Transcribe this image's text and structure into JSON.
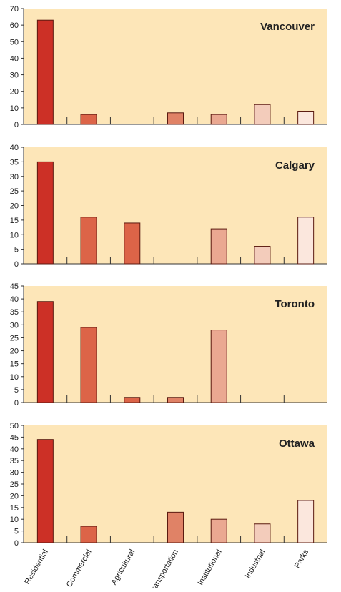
{
  "chart_data": {
    "type": "bar",
    "categories": [
      "Residential",
      "Commercial",
      "Agricultural",
      "Transportation",
      "Institutional",
      "Industrial",
      "Parks"
    ],
    "colors": {
      "plot_background": "#fde6b8",
      "bars": [
        "#cc3026",
        "#dc6448",
        "#dc6448",
        "#e08266",
        "#eaa891",
        "#f3ccbb",
        "#fbe7dd"
      ],
      "bar_outline": "#5a1a10"
    },
    "panels": [
      {
        "title": "Vancouver",
        "ylim": [
          0,
          70
        ],
        "yticks": [
          "0",
          "10",
          "20",
          "30",
          "40",
          "50",
          "60",
          "70"
        ],
        "values": [
          63,
          6,
          0,
          7,
          6,
          12,
          8
        ]
      },
      {
        "title": "Calgary",
        "ylim": [
          0,
          40
        ],
        "yticks": [
          "0",
          "5",
          "10",
          "15",
          "20",
          "25",
          "30",
          "35",
          "40"
        ],
        "values": [
          35,
          16,
          14,
          0,
          12,
          6,
          16
        ]
      },
      {
        "title": "Toronto",
        "ylim": [
          0,
          45
        ],
        "yticks": [
          "0",
          "5",
          "10",
          "15",
          "20",
          "25",
          "30",
          "35",
          "40",
          "45"
        ],
        "values": [
          39,
          29,
          2,
          2,
          28,
          0,
          0
        ]
      },
      {
        "title": "Ottawa",
        "ylim": [
          0,
          50
        ],
        "yticks": [
          "0",
          "5",
          "10",
          "15",
          "20",
          "25",
          "30",
          "35",
          "40",
          "45",
          "50"
        ],
        "values": [
          44,
          7,
          0,
          13,
          10,
          8,
          18
        ]
      }
    ]
  }
}
